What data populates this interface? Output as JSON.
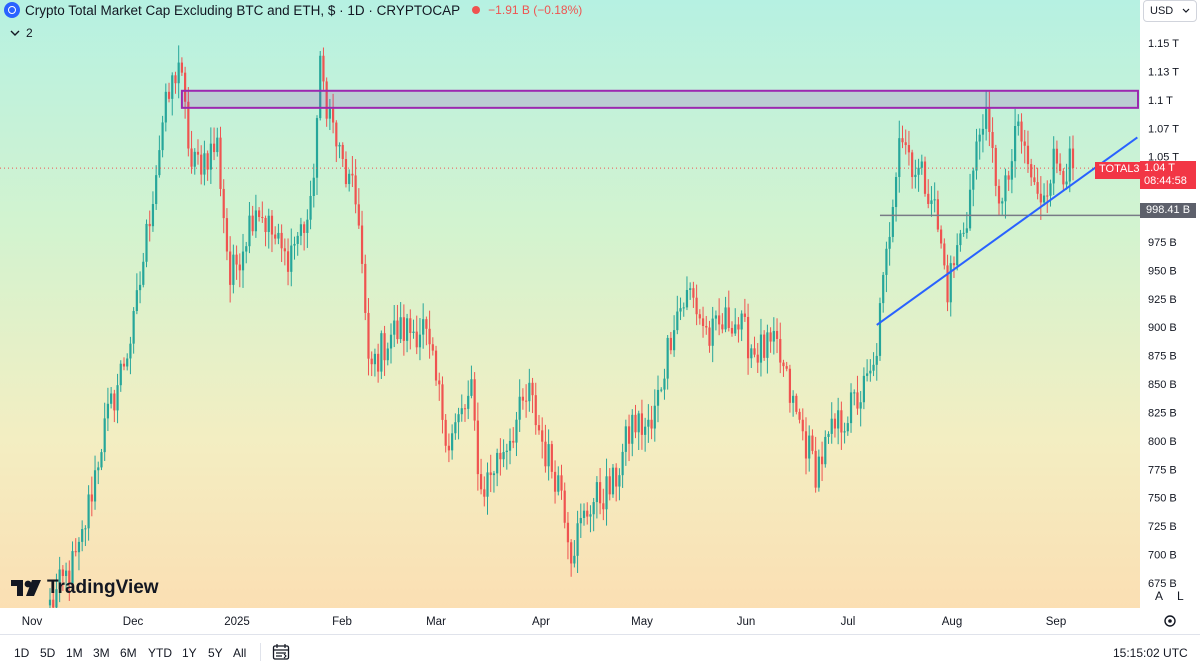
{
  "legend": {
    "title": "Crypto Total Market Cap Excluding BTC and ETH",
    "meta": ", $ · 1D · CRYPTOCAP",
    "change": "−1.91 B (−0.18%)",
    "collapsed_count": "2"
  },
  "currency": "USD",
  "logo": "TradingView",
  "price_axis": {
    "ticks": [
      {
        "label": "1.15 T",
        "value": 1150
      },
      {
        "label": "1.13 T",
        "value": 1125
      },
      {
        "label": "1.1 T",
        "value": 1100
      },
      {
        "label": "1.07 T",
        "value": 1075
      },
      {
        "label": "1.05 T",
        "value": 1050
      },
      {
        "label": "975 B",
        "value": 975
      },
      {
        "label": "950 B",
        "value": 950
      },
      {
        "label": "925 B",
        "value": 925
      },
      {
        "label": "900 B",
        "value": 900
      },
      {
        "label": "875 B",
        "value": 875
      },
      {
        "label": "850 B",
        "value": 850
      },
      {
        "label": "825 B",
        "value": 825
      },
      {
        "label": "800 B",
        "value": 800
      },
      {
        "label": "775 B",
        "value": 775
      },
      {
        "label": "750 B",
        "value": 750
      },
      {
        "label": "725 B",
        "value": 725
      },
      {
        "label": "700 B",
        "value": 700
      },
      {
        "label": "675 B",
        "value": 675
      }
    ],
    "auto_label": "A",
    "log_label": "L"
  },
  "current_price": {
    "symbol": "TOTAL3",
    "value": "1.04 T",
    "countdown": "08:44:58",
    "level": 1040
  },
  "horizontal_line": {
    "label": "998.41 B",
    "level": 998.41
  },
  "zone": {
    "top": 1108,
    "bottom": 1093
  },
  "trendline": {
    "start": {
      "date": "2025-07-11",
      "value": 902
    },
    "end": {
      "date": "2025-09-30",
      "value": 1067
    }
  },
  "time_axis": [
    "Nov",
    "Dec",
    "2025",
    "Feb",
    "Mar",
    "Apr",
    "May",
    "Jun",
    "Jul",
    "Aug",
    "Sep"
  ],
  "timeframes": [
    "1D",
    "5D",
    "1M",
    "3M",
    "6M",
    "YTD",
    "1Y",
    "5Y",
    "All"
  ],
  "clock": "15:15:02 UTC",
  "colors": {
    "up": "#26a69a",
    "down": "#ef5350",
    "zone": "#9c27b0",
    "trend": "#2962ff",
    "hline": "#787b86"
  },
  "chart_data": {
    "type": "candlestick",
    "units": "USD billions",
    "x_range": [
      "2024-10-27",
      "2025-09-10"
    ],
    "ylim": [
      660,
      1165
    ],
    "waypoints": [
      {
        "date": "2024-10-27",
        "close": 655
      },
      {
        "date": "2024-11-05",
        "close": 700
      },
      {
        "date": "2024-11-12",
        "close": 800
      },
      {
        "date": "2024-11-22",
        "close": 900
      },
      {
        "date": "2024-12-01",
        "close": 1080
      },
      {
        "date": "2024-12-06",
        "close": 1135
      },
      {
        "date": "2024-12-10",
        "close": 1040
      },
      {
        "date": "2024-12-18",
        "close": 1060
      },
      {
        "date": "2024-12-22",
        "close": 940
      },
      {
        "date": "2024-12-30",
        "close": 1010
      },
      {
        "date": "2025-01-08",
        "close": 960
      },
      {
        "date": "2025-01-16",
        "close": 1000
      },
      {
        "date": "2025-01-19",
        "close": 1125
      },
      {
        "date": "2025-01-25",
        "close": 1050
      },
      {
        "date": "2025-01-31",
        "close": 1000
      },
      {
        "date": "2025-02-03",
        "close": 860
      },
      {
        "date": "2025-02-10",
        "close": 895
      },
      {
        "date": "2025-02-20",
        "close": 900
      },
      {
        "date": "2025-02-28",
        "close": 800
      },
      {
        "date": "2025-03-07",
        "close": 840
      },
      {
        "date": "2025-03-10",
        "close": 755
      },
      {
        "date": "2025-03-18",
        "close": 800
      },
      {
        "date": "2025-03-25",
        "close": 840
      },
      {
        "date": "2025-03-30",
        "close": 790
      },
      {
        "date": "2025-04-04",
        "close": 760
      },
      {
        "date": "2025-04-07",
        "close": 705
      },
      {
        "date": "2025-04-13",
        "close": 745
      },
      {
        "date": "2025-04-20",
        "close": 760
      },
      {
        "date": "2025-04-26",
        "close": 815
      },
      {
        "date": "2025-05-02",
        "close": 810
      },
      {
        "date": "2025-05-09",
        "close": 910
      },
      {
        "date": "2025-05-14",
        "close": 930
      },
      {
        "date": "2025-05-20",
        "close": 890
      },
      {
        "date": "2025-05-27",
        "close": 910
      },
      {
        "date": "2025-06-03",
        "close": 880
      },
      {
        "date": "2025-06-10",
        "close": 880
      },
      {
        "date": "2025-06-15",
        "close": 830
      },
      {
        "date": "2025-06-22",
        "close": 775
      },
      {
        "date": "2025-06-28",
        "close": 810
      },
      {
        "date": "2025-07-06",
        "close": 840
      },
      {
        "date": "2025-07-10",
        "close": 860
      },
      {
        "date": "2025-07-14",
        "close": 960
      },
      {
        "date": "2025-07-18",
        "close": 1075
      },
      {
        "date": "2025-07-23",
        "close": 1040
      },
      {
        "date": "2025-07-28",
        "close": 1020
      },
      {
        "date": "2025-08-02",
        "close": 935
      },
      {
        "date": "2025-08-08",
        "close": 1000
      },
      {
        "date": "2025-08-13",
        "close": 1090
      },
      {
        "date": "2025-08-19",
        "close": 1005
      },
      {
        "date": "2025-08-24",
        "close": 1075
      },
      {
        "date": "2025-08-30",
        "close": 1010
      },
      {
        "date": "2025-09-04",
        "close": 1045
      },
      {
        "date": "2025-09-10",
        "close": 1040
      }
    ]
  }
}
